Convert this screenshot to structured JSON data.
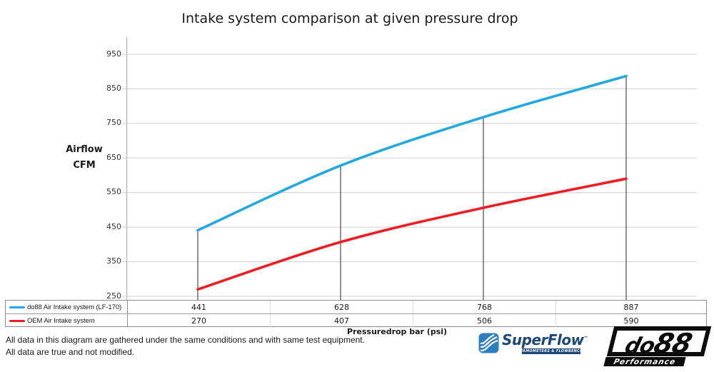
{
  "title": "Intake system comparison at given pressure drop",
  "y_axis": {
    "label_line1": "Airflow",
    "label_line2": "CFM"
  },
  "x_axis": {
    "caption": "Pressuredrop bar (psi)"
  },
  "chart_data": {
    "type": "line",
    "title": "Intake system comparison at given pressure drop",
    "ylabel": "Airflow CFM",
    "xlabel": "Pressuredrop bar (psi)",
    "ylim": [
      250,
      950
    ],
    "y_ticks": [
      950,
      850,
      750,
      650,
      550,
      450,
      350,
      250
    ],
    "grid": true,
    "x_points": 4,
    "series": [
      {
        "name": "do88 Air Intake system (LF-170)",
        "color": "#23a9e1",
        "values": [
          441,
          628,
          768,
          887
        ]
      },
      {
        "name": "OEM Air Intake system",
        "color": "#ee1c23",
        "values": [
          270,
          407,
          506,
          590
        ]
      }
    ],
    "legend_position": "bottom-table",
    "annotations": "vertical drop lines at each of the 4 test points"
  },
  "table": {
    "rows": [
      {
        "label": "do88 Air Intake system (LF-170)",
        "swatch_color": "#23a9e1",
        "values": [
          "441",
          "628",
          "768",
          "887"
        ]
      },
      {
        "label": "OEM Air Intake system",
        "swatch_color": "#ee1c23",
        "values": [
          "270",
          "407",
          "506",
          "590"
        ]
      }
    ]
  },
  "footnotes": [
    "All data in this diagram are gathered under the same conditions and with same test equipment.",
    "All data are true and not modified."
  ],
  "logos": {
    "superflow": {
      "name": "SuperFlow",
      "tm": "™",
      "tagline": "DYNAMOMETERS & FLOWBENCHES"
    },
    "do88": {
      "part1": "do",
      "part2": "88",
      "tagline": "Performance"
    }
  },
  "colors": {
    "gridline": "#d9d9d9",
    "axis": "#b3b3b3",
    "drop_line": "#262626",
    "blue_series": "#23a9e1",
    "red_series": "#ee1c23",
    "navy": "#1c4878",
    "icon_blue": "#2d7fc1"
  }
}
